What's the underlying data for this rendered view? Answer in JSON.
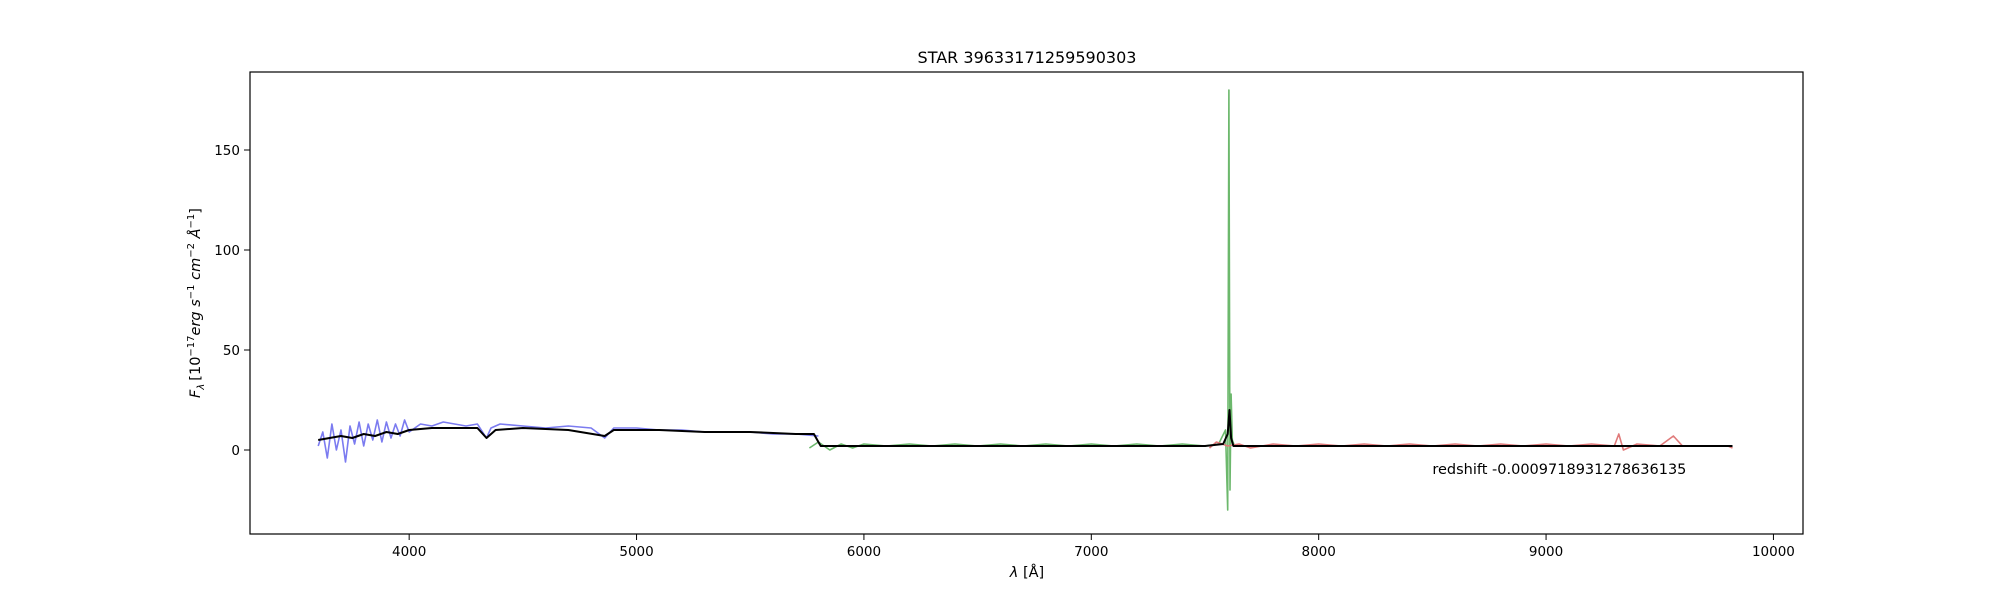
{
  "chart_data": {
    "type": "line",
    "title": "STAR 39633171259590303",
    "xlabel_var": "λ",
    "xlabel_unit": "[Å]",
    "ylabel_var": "F",
    "ylabel_sub": "λ",
    "ylabel_prefix": "[10",
    "ylabel_exp1": "−17",
    "ylabel_erg": "erg s",
    "ylabel_exp2": "−1",
    "ylabel_cm": " cm",
    "ylabel_exp3": "−2",
    "ylabel_A": " Å",
    "ylabel_exp4": "−1",
    "ylabel_close": "]",
    "xlim": [
      3300,
      10130
    ],
    "ylim": [
      -42,
      189
    ],
    "xticks": [
      4000,
      5000,
      6000,
      7000,
      8000,
      9000,
      10000
    ],
    "yticks": [
      0,
      50,
      100,
      150
    ],
    "grid": false,
    "annotation": {
      "text": "redshift -0.0009718931278636135",
      "x": 8500,
      "y": -12
    },
    "series": [
      {
        "id": "b",
        "color": "#7b7bf0",
        "x": [
          3600,
          3620,
          3640,
          3660,
          3680,
          3700,
          3720,
          3740,
          3760,
          3780,
          3800,
          3820,
          3840,
          3860,
          3880,
          3900,
          3920,
          3940,
          3960,
          3980,
          4000,
          4050,
          4100,
          4150,
          4200,
          4250,
          4300,
          4340,
          4360,
          4400,
          4500,
          4600,
          4700,
          4800,
          4860,
          4900,
          5000,
          5100,
          5200,
          5300,
          5400,
          5500,
          5600,
          5700,
          5800
        ],
        "y": [
          2,
          9,
          -4,
          13,
          0,
          10,
          -6,
          12,
          3,
          14,
          2,
          13,
          5,
          15,
          4,
          14,
          6,
          13,
          7,
          15,
          9,
          13,
          12,
          14,
          13,
          12,
          13,
          6,
          11,
          13,
          12,
          11,
          12,
          11,
          6,
          11,
          11,
          10,
          10,
          9,
          9,
          9,
          8,
          8,
          7
        ]
      },
      {
        "id": "g",
        "color": "#6cb86c",
        "x": [
          5760,
          5800,
          5850,
          5900,
          5950,
          6000,
          6100,
          6200,
          6300,
          6400,
          6500,
          6600,
          6700,
          6800,
          6900,
          7000,
          7100,
          7200,
          7300,
          7400,
          7500,
          7560,
          7590,
          7600,
          7605,
          7610,
          7615,
          7620,
          7630
        ],
        "y": [
          1,
          4,
          0,
          3,
          1,
          3,
          2,
          3,
          2,
          3,
          2,
          3,
          2,
          3,
          2,
          3,
          2,
          3,
          2,
          3,
          2,
          3,
          10,
          -30,
          180,
          -20,
          28,
          5,
          2
        ]
      },
      {
        "id": "r",
        "color": "#e07a7a",
        "x": [
          7520,
          7550,
          7600,
          7650,
          7700,
          7800,
          7900,
          8000,
          8100,
          8200,
          8300,
          8400,
          8500,
          8600,
          8700,
          8800,
          8900,
          9000,
          9100,
          9200,
          9300,
          9320,
          9340,
          9400,
          9500,
          9560,
          9600,
          9700,
          9800,
          9820
        ],
        "y": [
          1,
          4,
          2,
          3,
          1,
          3,
          2,
          3,
          2,
          3,
          2,
          3,
          2,
          3,
          2,
          3,
          2,
          3,
          2,
          3,
          2,
          8,
          0,
          3,
          2,
          7,
          2,
          2,
          2,
          1
        ]
      },
      {
        "id": "model",
        "color": "#000000",
        "x": [
          3600,
          3650,
          3700,
          3750,
          3800,
          3850,
          3900,
          3950,
          4000,
          4100,
          4200,
          4300,
          4340,
          4380,
          4500,
          4700,
          4860,
          4900,
          5100,
          5300,
          5500,
          5700,
          5780,
          5800,
          5810,
          5900,
          6000,
          6500,
          7000,
          7500,
          7580,
          7600,
          7608,
          7615,
          7625,
          7700,
          8000,
          8500,
          9000,
          9500,
          9820
        ],
        "y": [
          5,
          6,
          7,
          6,
          8,
          7,
          9,
          8,
          10,
          11,
          11,
          11,
          6,
          10,
          11,
          10,
          7,
          10,
          10,
          9,
          9,
          8,
          8,
          4,
          2,
          2,
          2,
          2,
          2,
          2,
          3,
          8,
          20,
          6,
          2,
          2,
          2,
          2,
          2,
          2,
          2
        ]
      }
    ]
  }
}
